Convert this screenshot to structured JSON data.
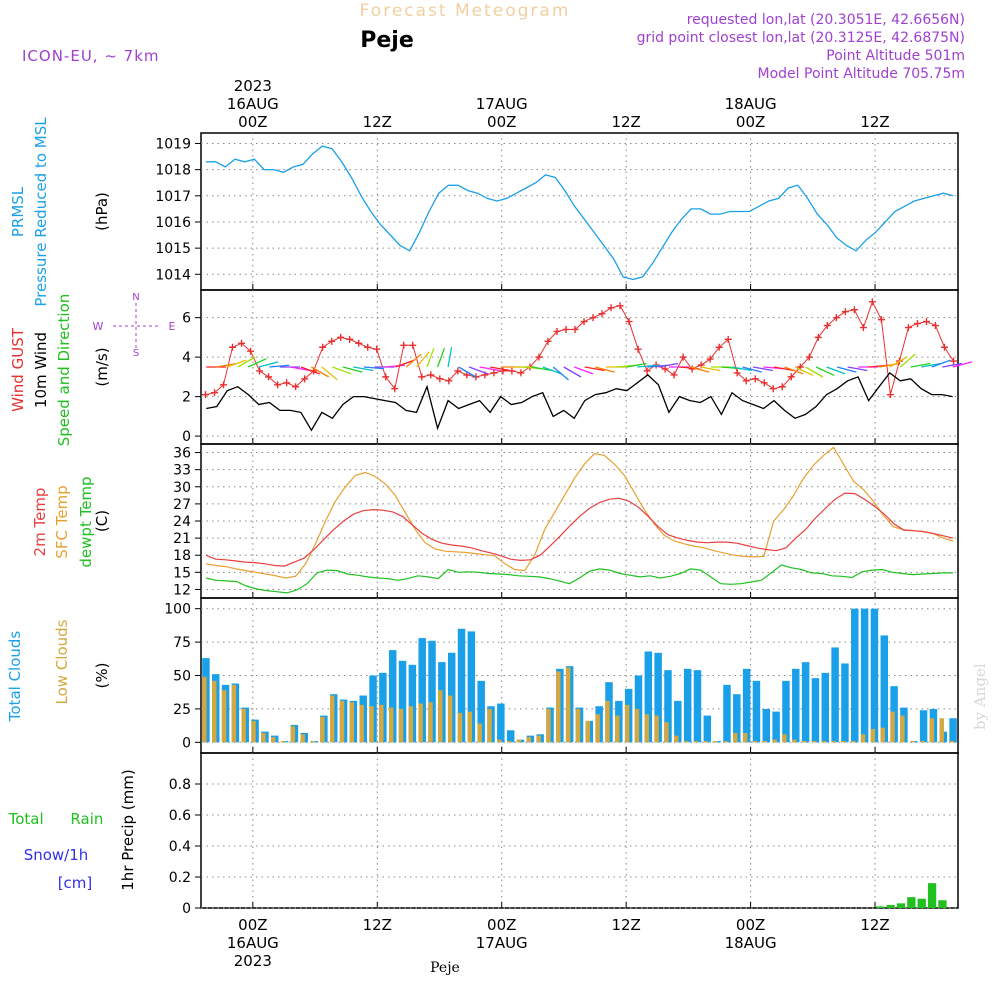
{
  "header": {
    "supertitle": "Forecast Meteogram",
    "station": "Peje",
    "model": "ICON-EU, ~ 7km",
    "requested": "requested lon,lat (20.3051E, 42.6656N)",
    "gridpoint": "grid point closest lon,lat (20.3125E, 42.6875N)",
    "point_alt": "Point Altitude 501m",
    "model_alt": "Model Point Altitude 705.75m",
    "footer_station": "Peje",
    "credit": "by Angel"
  },
  "time_axis": {
    "top_ticks": [
      "00Z",
      "12Z",
      "00Z",
      "12Z",
      "00Z",
      "12Z"
    ],
    "top_dates": [
      "16AUG",
      "17AUG",
      "18AUG"
    ],
    "year": "2023",
    "bottom_ticks": [
      "00Z",
      "12Z",
      "00Z",
      "12Z",
      "00Z",
      "12Z"
    ],
    "bottom_dates": [
      "16AUG",
      "17AUG",
      "18AUG"
    ],
    "start_time": "2023-08-15T19:00Z",
    "end_time": "2023-08-18T20:00Z",
    "step_hours": 1
  },
  "colors": {
    "pressure": "#1aa0e8",
    "gust": "#e83030",
    "wind": "#000000",
    "temp2m": "#e84040",
    "sfc": "#e8a030",
    "dewpt": "#20c020",
    "total_clouds": "#1aa0e8",
    "low_clouds": "#d4a840",
    "rain": "#20c020",
    "snow": "#3030e8",
    "label_purple": "#a040d0",
    "grid": "#888888"
  },
  "chart_data": [
    {
      "type": "line",
      "name": "pressure",
      "ylabel_lines": [
        "PRMSL",
        "Pressure Reduced to MSL"
      ],
      "unit": "(hPa)",
      "ylim": [
        1013.4,
        1019.4
      ],
      "yticks": [
        1014,
        1015,
        1016,
        1017,
        1018,
        1019
      ],
      "grid": true,
      "series": [
        {
          "values": [
            1018.3,
            1018.3,
            1018.1,
            1018.4,
            1018.3,
            1018.4,
            1018.0,
            1018.0,
            1017.9,
            1018.1,
            1018.2,
            1018.6,
            1018.9,
            1018.8,
            1018.3,
            1017.7,
            1017.0,
            1016.4,
            1015.9,
            1015.5,
            1015.1,
            1014.9,
            1015.6,
            1016.4,
            1017.1,
            1017.4,
            1017.4,
            1017.2,
            1017.1,
            1016.9,
            1016.8,
            1016.9,
            1017.1,
            1017.3,
            1017.5,
            1017.8,
            1017.7,
            1017.2,
            1016.6,
            1016.1,
            1015.6,
            1015.1,
            1014.6,
            1013.9,
            1013.8,
            1013.9,
            1014.4,
            1015.0,
            1015.6,
            1016.1,
            1016.5,
            1016.5,
            1016.3,
            1016.3,
            1016.4,
            1016.4,
            1016.4,
            1016.6,
            1016.8,
            1016.9,
            1017.3,
            1017.4,
            1016.9,
            1016.3,
            1015.9,
            1015.4,
            1015.1,
            1014.9,
            1015.3,
            1015.6,
            1016.0,
            1016.4,
            1016.6,
            1016.8,
            1016.9,
            1017.0,
            1017.1,
            1017.0
          ]
        }
      ]
    },
    {
      "type": "line",
      "name": "wind",
      "ylabel_lines": [
        "Wind GUST",
        "10m Wind",
        "Speed and Direction"
      ],
      "unit": "(m/s)",
      "compass": {
        "n": "N",
        "s": "S",
        "e": "E",
        "w": "W"
      },
      "ylim": [
        -0.4,
        7.4
      ],
      "yticks": [
        0,
        2,
        4,
        6
      ],
      "grid": true,
      "series": [
        {
          "name": "gust",
          "values": [
            2.1,
            2.2,
            2.6,
            4.5,
            4.7,
            4.3,
            3.3,
            3.0,
            2.6,
            2.7,
            2.5,
            2.9,
            3.3,
            4.5,
            4.8,
            5.0,
            4.9,
            4.7,
            4.5,
            4.4,
            3.0,
            2.4,
            4.6,
            4.6,
            3.0,
            3.1,
            2.9,
            2.8,
            3.3,
            3.1,
            3.0,
            3.1,
            3.2,
            3.3,
            3.3,
            3.2,
            3.5,
            4.0,
            4.8,
            5.3,
            5.4,
            5.4,
            5.8,
            6.0,
            6.2,
            6.5,
            6.6,
            5.8,
            4.4,
            3.3,
            3.6,
            3.4,
            3.1,
            4.0,
            3.4,
            3.6,
            3.9,
            4.5,
            4.9,
            3.2,
            2.8,
            2.9,
            2.7,
            2.4,
            2.5,
            3.0,
            3.5,
            4.0,
            5.0,
            5.6,
            6.0,
            6.3,
            6.4,
            5.5,
            6.8,
            5.9,
            2.1,
            3.8,
            5.5,
            5.7,
            5.8,
            5.6,
            4.5,
            3.8
          ]
        },
        {
          "name": "wind_speed",
          "values": [
            1.4,
            1.5,
            2.3,
            2.5,
            2.1,
            1.6,
            1.7,
            1.3,
            1.3,
            1.2,
            0.3,
            1.2,
            0.9,
            1.6,
            2.0,
            2.0,
            1.9,
            1.8,
            1.7,
            1.3,
            1.2,
            2.5,
            0.4,
            1.8,
            1.4,
            1.6,
            1.8,
            1.2,
            2.0,
            1.6,
            1.7,
            2.0,
            2.2,
            1.0,
            1.3,
            0.9,
            1.8,
            2.1,
            2.2,
            2.4,
            2.3,
            2.7,
            3.1,
            2.6,
            1.2,
            2.0,
            1.8,
            1.7,
            2.0,
            1.1,
            2.2,
            1.8,
            1.6,
            1.4,
            1.8,
            1.3,
            0.9,
            1.1,
            1.5,
            2.1,
            2.4,
            2.8,
            3.0,
            1.8,
            2.5,
            3.2,
            2.8,
            2.9,
            2.4,
            2.1,
            2.1,
            2.0
          ]
        },
        {
          "name": "direction_deg",
          "values": [
            270,
            260,
            250,
            240,
            245,
            255,
            265,
            270,
            280,
            290,
            300,
            310,
            290,
            285,
            280,
            275,
            270,
            265,
            250,
            230,
            220,
            200,
            200,
            190,
            300,
            290,
            280,
            280,
            270,
            270,
            275,
            280,
            290,
            310,
            300,
            290,
            280,
            285,
            270,
            265,
            260,
            265,
            265,
            260,
            270,
            275,
            285,
            280,
            270,
            275,
            280,
            285,
            280,
            275,
            280,
            290,
            295,
            300,
            295,
            290,
            285,
            280,
            270,
            265,
            260,
            240,
            230,
            260,
            260,
            250,
            260,
            255
          ]
        }
      ]
    },
    {
      "type": "line",
      "name": "temperature",
      "ylabel_lines": [
        "2m Temp",
        "SFC Temp",
        "dewpt Temp"
      ],
      "unit": "(C)",
      "ylim": [
        10.5,
        37.5
      ],
      "yticks": [
        12,
        15,
        18,
        21,
        24,
        27,
        30,
        33,
        36
      ],
      "grid": true,
      "series": [
        {
          "name": "2m Temp",
          "values": [
            18.0,
            17.3,
            17.2,
            17.0,
            16.8,
            16.7,
            16.5,
            16.2,
            16.1,
            16.8,
            17.5,
            19.0,
            20.8,
            22.5,
            24.0,
            25.2,
            25.8,
            26.0,
            25.9,
            25.6,
            24.8,
            23.3,
            21.8,
            20.8,
            20.1,
            19.8,
            19.6,
            19.3,
            18.8,
            18.4,
            17.9,
            17.3,
            17.1,
            17.2,
            18.0,
            19.6,
            21.3,
            23.1,
            24.8,
            26.2,
            27.2,
            27.8,
            28.0,
            27.5,
            26.4,
            24.8,
            23.0,
            21.6,
            21.0,
            20.6,
            20.3,
            20.2,
            20.3,
            20.3,
            20.1,
            19.7,
            19.3,
            19.0,
            18.8,
            19.3,
            21.0,
            22.5,
            24.5,
            26.2,
            27.8,
            28.9,
            28.8,
            27.8,
            26.6,
            25.2,
            23.5,
            22.4,
            22.3,
            22.1,
            21.8,
            21.4,
            21.0
          ]
        },
        {
          "name": "SFC Temp",
          "values": [
            16.5,
            16.2,
            16.0,
            15.6,
            15.3,
            15.0,
            14.7,
            14.4,
            14.0,
            14.3,
            16.5,
            20.0,
            24.0,
            27.5,
            30.0,
            32.0,
            32.5,
            31.8,
            30.5,
            28.5,
            25.5,
            22.5,
            20.2,
            19.1,
            18.7,
            18.6,
            18.5,
            18.3,
            18.1,
            17.9,
            16.5,
            15.5,
            15.3,
            18.0,
            22.5,
            25.5,
            28.5,
            31.5,
            34.0,
            35.8,
            35.5,
            34.0,
            32.0,
            29.0,
            26.0,
            23.5,
            21.5,
            20.5,
            20.0,
            19.6,
            19.3,
            18.8,
            18.4,
            18.0,
            17.8,
            17.7,
            17.8,
            24.0,
            26.0,
            28.5,
            31.5,
            33.8,
            35.5,
            36.9,
            34.0,
            31.0,
            29.5,
            27.5,
            25.0,
            23.0,
            22.5,
            22.3,
            22.2,
            21.8,
            21.0,
            20.5
          ]
        },
        {
          "name": "dewpt Temp",
          "values": [
            14.0,
            13.6,
            13.5,
            13.4,
            12.6,
            12.1,
            11.8,
            11.6,
            11.4,
            11.9,
            13.0,
            14.9,
            15.4,
            15.3,
            14.7,
            14.5,
            14.2,
            14.0,
            13.9,
            13.6,
            13.9,
            14.4,
            14.2,
            13.9,
            15.5,
            15.0,
            15.1,
            15.0,
            14.8,
            14.7,
            14.6,
            14.4,
            14.3,
            14.2,
            13.9,
            13.5,
            13.0,
            14.0,
            15.2,
            15.6,
            15.4,
            14.8,
            14.5,
            14.2,
            14.4,
            14.0,
            14.3,
            14.8,
            15.6,
            15.4,
            14.2,
            13.0,
            12.9,
            13.0,
            13.3,
            13.6,
            14.9,
            16.3,
            15.8,
            15.5,
            14.9,
            14.8,
            14.4,
            14.3,
            14.1,
            15.1,
            15.4,
            15.5,
            15.0,
            14.8,
            14.6,
            14.7,
            14.8,
            14.9,
            14.9
          ]
        }
      ]
    },
    {
      "type": "bar",
      "name": "clouds",
      "ylabel_lines": [
        "Total Clouds",
        "Low Clouds"
      ],
      "unit": "(%)",
      "ylim": [
        -8,
        108
      ],
      "yticks": [
        0,
        25,
        50,
        75,
        100
      ],
      "grid": true,
      "series": [
        {
          "name": "Total Clouds",
          "values": [
            63,
            51,
            43,
            44,
            26,
            17,
            8,
            5,
            1,
            13,
            7,
            1,
            20,
            36,
            32,
            31,
            35,
            50,
            52,
            69,
            61,
            58,
            78,
            76,
            60,
            67,
            85,
            83,
            46,
            27,
            29,
            9,
            2,
            5,
            6,
            26,
            55,
            57,
            26,
            16,
            27,
            45,
            31,
            40,
            50,
            68,
            67,
            54,
            31,
            55,
            54,
            20,
            1,
            43,
            36,
            55,
            46,
            25,
            23,
            46,
            55,
            60,
            48,
            52,
            71,
            59,
            100,
            100,
            100,
            80,
            42,
            26,
            1,
            24,
            25,
            8,
            18
          ]
        },
        {
          "name": "Low Clouds",
          "values": [
            49,
            46,
            39,
            43,
            25,
            16,
            7,
            4,
            1,
            12,
            6,
            1,
            19,
            35,
            31,
            30,
            28,
            27,
            28,
            26,
            25,
            27,
            29,
            30,
            39,
            35,
            22,
            23,
            14,
            25,
            2,
            1,
            2,
            4,
            5,
            25,
            53,
            56,
            25,
            16,
            21,
            31,
            20,
            28,
            25,
            21,
            20,
            15,
            5,
            1,
            1,
            1,
            1,
            1,
            7,
            7,
            1,
            1,
            2,
            6,
            2,
            1,
            1,
            1,
            1,
            1,
            1,
            6,
            10,
            11,
            23,
            20,
            1,
            1,
            18,
            18,
            1
          ]
        }
      ]
    },
    {
      "type": "bar",
      "name": "precipitation",
      "ylabel_lines": [
        "Total Rain",
        "Snow/1h",
        "[cm]"
      ],
      "unit": "1hr Precip (mm)",
      "ylim": [
        0,
        1.0
      ],
      "yticks": [
        0,
        0.2,
        0.4,
        0.6,
        0.8
      ],
      "ytick_labels": [
        "0",
        "0.2",
        "0.4",
        "0.6",
        "0.8"
      ],
      "grid": true,
      "series": [
        {
          "name": "Total Rain",
          "start_index": 65,
          "values": [
            0.01,
            0.02,
            0.03,
            0.07,
            0.06,
            0.16,
            0.05,
            0
          ]
        }
      ]
    }
  ]
}
